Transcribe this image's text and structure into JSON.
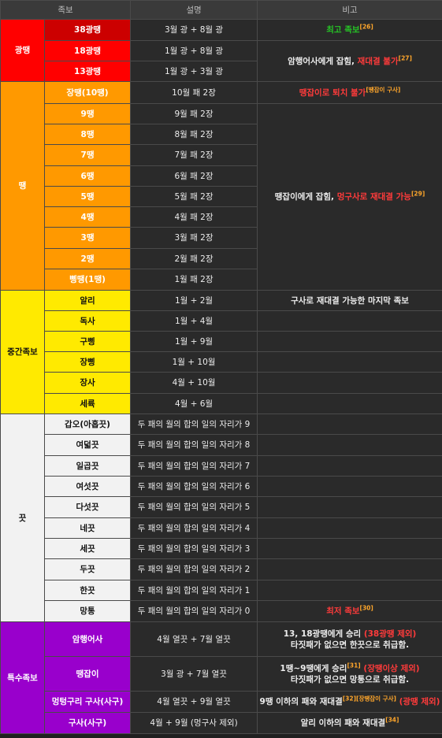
{
  "headers": {
    "family": "족보",
    "desc": "설명",
    "note": "비고"
  },
  "groups": {
    "gwang": "광땡",
    "ttaeng": "땡",
    "mid": "중간족보",
    "kkeut": "끗",
    "special": "특수족보"
  },
  "rows": [
    {
      "name": "38광땡",
      "desc": "3월 광 + 8월 광"
    },
    {
      "name": "18광땡",
      "desc": "1월 광 + 8월 광"
    },
    {
      "name": "13광땡",
      "desc": "1월 광 + 3월 광"
    },
    {
      "name": "장땡(10땡)",
      "desc": "10월 패 2장"
    },
    {
      "name": "9땡",
      "desc": "9월 패 2장"
    },
    {
      "name": "8땡",
      "desc": "8월 패 2장"
    },
    {
      "name": "7땡",
      "desc": "7월 패 2장"
    },
    {
      "name": "6땡",
      "desc": "6월 패 2장"
    },
    {
      "name": "5땡",
      "desc": "5월 패 2장"
    },
    {
      "name": "4땡",
      "desc": "4월 패 2장"
    },
    {
      "name": "3땡",
      "desc": "3월 패 2장"
    },
    {
      "name": "2땡",
      "desc": "2월 패 2장"
    },
    {
      "name": "삥땡(1땡)",
      "desc": "1월 패 2장"
    },
    {
      "name": "알리",
      "desc": "1월 + 2월"
    },
    {
      "name": "독사",
      "desc": "1월 + 4월"
    },
    {
      "name": "구삥",
      "desc": "1월 + 9월"
    },
    {
      "name": "장삥",
      "desc": "1월 + 10월"
    },
    {
      "name": "장사",
      "desc": "4월 + 10월"
    },
    {
      "name": "세륙",
      "desc": "4월 + 6월"
    },
    {
      "name": "갑오(아홉끗)",
      "desc": "두 패의 월의 합의 일의 자리가 9"
    },
    {
      "name": "여덟끗",
      "desc": "두 패의 월의 합의 일의 자리가 8"
    },
    {
      "name": "일곱끗",
      "desc": "두 패의 월의 합의 일의 자리가 7"
    },
    {
      "name": "여섯끗",
      "desc": "두 패의 월의 합의 일의 자리가 6"
    },
    {
      "name": "다섯끗",
      "desc": "두 패의 월의 합의 일의 자리가 5"
    },
    {
      "name": "네끗",
      "desc": "두 패의 월의 합의 일의 자리가 4"
    },
    {
      "name": "세끗",
      "desc": "두 패의 월의 합의 일의 자리가 3"
    },
    {
      "name": "두끗",
      "desc": "두 패의 월의 합의 일의 자리가 2"
    },
    {
      "name": "한끗",
      "desc": "두 패의 월의 합의 일의 자리가 1"
    },
    {
      "name": "망통",
      "desc": "두 패의 월의 합의 일의 자리가 0"
    },
    {
      "name": "암행어사",
      "desc": "4월 열끗 + 7월 열끗"
    },
    {
      "name": "땡잡이",
      "desc": "3월 광 + 7월 열끗"
    },
    {
      "name": "멍텅구리 구사(사구)",
      "desc": "4월 열끗 + 9월 열끗"
    },
    {
      "name": "구사(사구)",
      "desc": "4월 + 9월 (멍구사 제외)"
    }
  ],
  "notes": {
    "n38": {
      "text": "최고 족보",
      "ref": "[26]"
    },
    "n18": {
      "text1": "암행어사에게 잡힘, ",
      "text2": "재대결 불가",
      "ref": "[27]"
    },
    "jang": {
      "text": "땡잡이로 퇴치 불가",
      "ref": "[땡잡이 구사]"
    },
    "ttaeng": {
      "text1": "땡잡이에게 잡힘, ",
      "text2": "멍구사로 재대결 가능",
      "ref": "[29]"
    },
    "ali": {
      "text": "구사로 재대결 가능한 마지막 족보"
    },
    "mangtong": {
      "text": "최저 족보",
      "ref": "[30]"
    },
    "amhaeng": {
      "text1": "13, 18광땡에게 승리 ",
      "text2": "(38광땡 제외)",
      "text3": "타짓패가 없으면 한끗으로 취급함."
    },
    "ttaengjabi": {
      "text1": "1땡~9땡에게 승리",
      "ref": "[31]",
      "text2": " (장땡이상 제외)",
      "text3": "타짓패가 없으면 망통으로 취급함."
    },
    "meongsa": {
      "text1": "9땡 이하의 패와 재대결",
      "ref": "[32][장땡잡이 구사]",
      "text2": " (광땡 제외)"
    },
    "gusa": {
      "text1": "알리 이하의 패와 재대결",
      "ref": "[34]"
    }
  }
}
